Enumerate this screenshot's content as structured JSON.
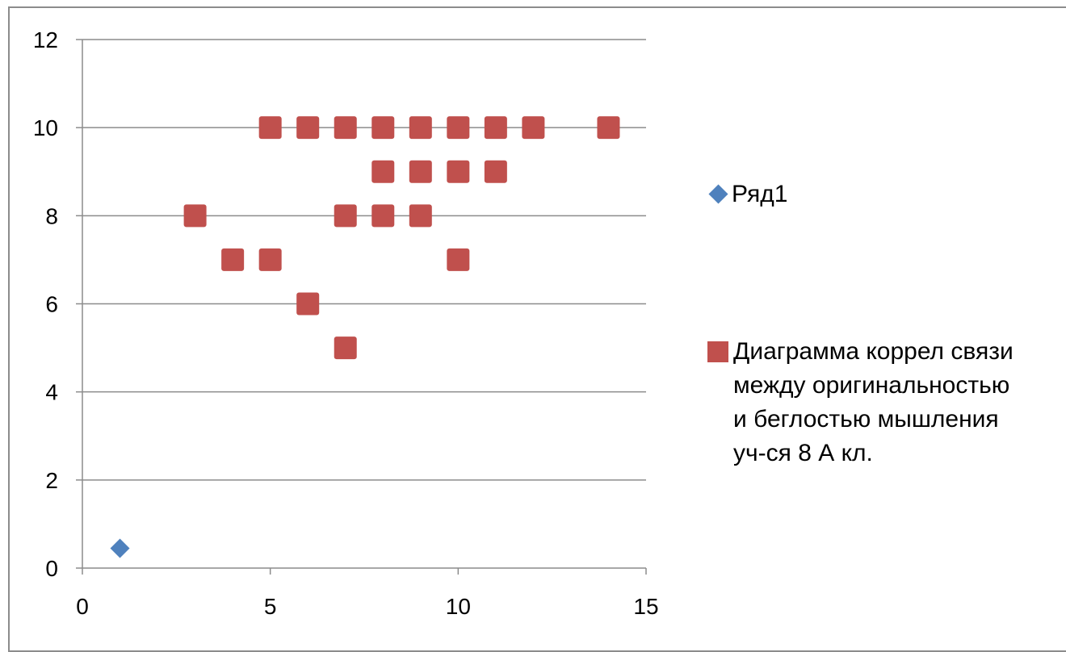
{
  "chart_data": {
    "type": "scatter",
    "title": "",
    "xlabel": "",
    "ylabel": "",
    "xlim": [
      0,
      15
    ],
    "ylim": [
      0,
      12
    ],
    "x_ticks": [
      "0",
      "5",
      "10",
      "15"
    ],
    "y_ticks": [
      "0",
      "2",
      "4",
      "6",
      "8",
      "10",
      "12"
    ],
    "grid": "horizontal",
    "legend_position": "right",
    "series": [
      {
        "name": "Ряд1",
        "marker": "diamond",
        "color": "#4f81bd",
        "points": [
          [
            1,
            0.45
          ]
        ]
      },
      {
        "name": "Диаграмма коррел связи между оригинальностью и беглостью мышления уч-ся 8 А кл.",
        "marker": "square",
        "color": "#c0504d",
        "points": [
          [
            5,
            10
          ],
          [
            6,
            10
          ],
          [
            7,
            10
          ],
          [
            8,
            10
          ],
          [
            9,
            10
          ],
          [
            10,
            10
          ],
          [
            11,
            10
          ],
          [
            12,
            10
          ],
          [
            14,
            10
          ],
          [
            8,
            9
          ],
          [
            9,
            9
          ],
          [
            10,
            9
          ],
          [
            11,
            9
          ],
          [
            3,
            8
          ],
          [
            7,
            8
          ],
          [
            8,
            8
          ],
          [
            9,
            8
          ],
          [
            4,
            7
          ],
          [
            5,
            7
          ],
          [
            10,
            7
          ],
          [
            6,
            6
          ],
          [
            7,
            5
          ]
        ]
      }
    ]
  },
  "legend": {
    "items": [
      {
        "label": "Ряд1"
      },
      {
        "label_lines": [
          "Диаграмма коррел связи",
          "между оригинальностью",
          "и беглостью мышления",
          "уч-ся 8 А кл."
        ]
      }
    ]
  }
}
